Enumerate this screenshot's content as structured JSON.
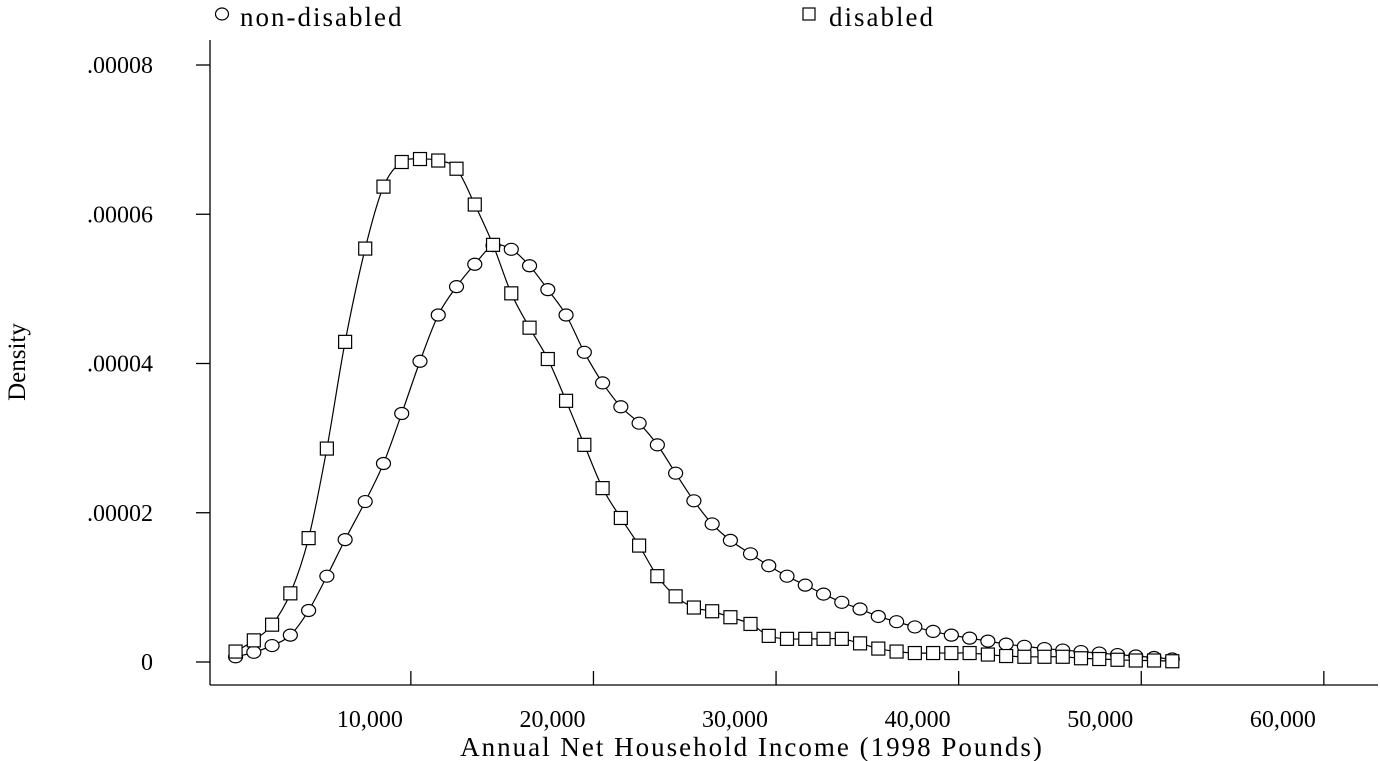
{
  "chart_data": {
    "type": "line",
    "title": "",
    "xlabel": "Annual Net Household Income (1998 Pounds)",
    "ylabel": "Density",
    "xlim": [
      -1000,
      63000
    ],
    "ylim": [
      -3.3e-06,
      8.4e-05
    ],
    "x_ticks": [
      {
        "value": 10000,
        "label": "10,000"
      },
      {
        "value": 20000,
        "label": "20,000"
      },
      {
        "value": 30000,
        "label": "30,000"
      },
      {
        "value": 40000,
        "label": "40,000"
      },
      {
        "value": 50000,
        "label": "50,000"
      },
      {
        "value": 60000,
        "label": "60,000"
      }
    ],
    "y_ticks": [
      {
        "value": 0,
        "label": "0"
      },
      {
        "value": 2e-05,
        "label": ".00002"
      },
      {
        "value": 4e-05,
        "label": ".00004"
      },
      {
        "value": 6e-05,
        "label": ".00006"
      },
      {
        "value": 8e-05,
        "label": ".00008"
      }
    ],
    "grid": false,
    "legend_position": "top",
    "series": [
      {
        "name": "non-disabled",
        "marker": "circle",
        "x": [
          400,
          1400,
          2400,
          3400,
          4400,
          5400,
          6400,
          7500,
          8500,
          9500,
          10500,
          11500,
          12500,
          13500,
          14500,
          15500,
          16500,
          17500,
          18500,
          19500,
          20500,
          21500,
          22500,
          23500,
          24500,
          25500,
          26500,
          27500,
          28600,
          29600,
          30600,
          31600,
          32600,
          33600,
          34600,
          35600,
          36600,
          37600,
          38600,
          39600,
          40600,
          41600,
          42600,
          43600,
          44700,
          45700,
          46700,
          47700,
          48700,
          49700,
          50700,
          51700
        ],
        "y": [
          7e-07,
          1.3e-06,
          2.2e-06,
          3.6e-06,
          6.9e-06,
          1.15e-05,
          1.64e-05,
          2.15e-05,
          2.66e-05,
          3.33e-05,
          4.03e-05,
          4.65e-05,
          5.03e-05,
          5.33e-05,
          5.58e-05,
          5.53e-05,
          5.31e-05,
          4.99e-05,
          4.65e-05,
          4.15e-05,
          3.74e-05,
          3.42e-05,
          3.2e-05,
          2.91e-05,
          2.53e-05,
          2.16e-05,
          1.85e-05,
          1.63e-05,
          1.45e-05,
          1.29e-05,
          1.15e-05,
          1.03e-05,
          9.1e-06,
          8e-06,
          7.1e-06,
          6.1e-06,
          5.4e-06,
          4.7e-06,
          4.1e-06,
          3.6e-06,
          3.2e-06,
          2.8e-06,
          2.4e-06,
          2.1e-06,
          1.8e-06,
          1.6e-06,
          1.4e-06,
          1.2e-06,
          1e-06,
          8e-07,
          6e-07,
          4e-07
        ]
      },
      {
        "name": "disabled",
        "marker": "square",
        "x": [
          400,
          1400,
          2400,
          3400,
          4400,
          5400,
          6400,
          7500,
          8500,
          9500,
          10500,
          11500,
          12500,
          13500,
          14500,
          15500,
          16500,
          17500,
          18500,
          19500,
          20500,
          21500,
          22500,
          23500,
          24500,
          25500,
          26500,
          27500,
          28600,
          29600,
          30600,
          31600,
          32600,
          33600,
          34600,
          35600,
          36600,
          37600,
          38600,
          39600,
          40600,
          41600,
          42600,
          43600,
          44700,
          45700,
          46700,
          47700,
          48700,
          49700,
          50700,
          51700
        ],
        "y": [
          1.4e-06,
          2.9e-06,
          5e-06,
          9.2e-06,
          1.66e-05,
          2.86e-05,
          4.29e-05,
          5.54e-05,
          6.37e-05,
          6.7e-05,
          6.74e-05,
          6.72e-05,
          6.61e-05,
          6.13e-05,
          5.59e-05,
          4.94e-05,
          4.48e-05,
          4.06e-05,
          3.5e-05,
          2.91e-05,
          2.33e-05,
          1.93e-05,
          1.56e-05,
          1.15e-05,
          8.8e-06,
          7.3e-06,
          6.8e-06,
          6e-06,
          5.1e-06,
          3.5e-06,
          3.1e-06,
          3.1e-06,
          3.1e-06,
          3.1e-06,
          2.5e-06,
          1.8e-06,
          1.4e-06,
          1.2e-06,
          1.2e-06,
          1.2e-06,
          1.2e-06,
          1e-06,
          8e-07,
          7e-07,
          7e-07,
          7e-07,
          5e-07,
          4e-07,
          3e-07,
          2e-07,
          2e-07,
          1e-07
        ]
      }
    ]
  }
}
